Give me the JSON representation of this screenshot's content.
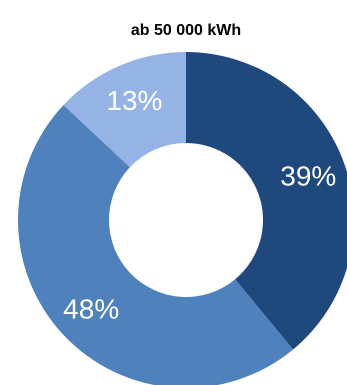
{
  "chart_data": {
    "type": "pie",
    "title": "ab 50 000 kWh",
    "categories": [
      "",
      "",
      ""
    ],
    "values": [
      39,
      48,
      13
    ],
    "labels": [
      "39%",
      "48%",
      "13%"
    ],
    "colors": [
      "#1f497d",
      "#4f81bd",
      "#95b3e5"
    ],
    "label_color": "#ffffff",
    "donut": true
  }
}
